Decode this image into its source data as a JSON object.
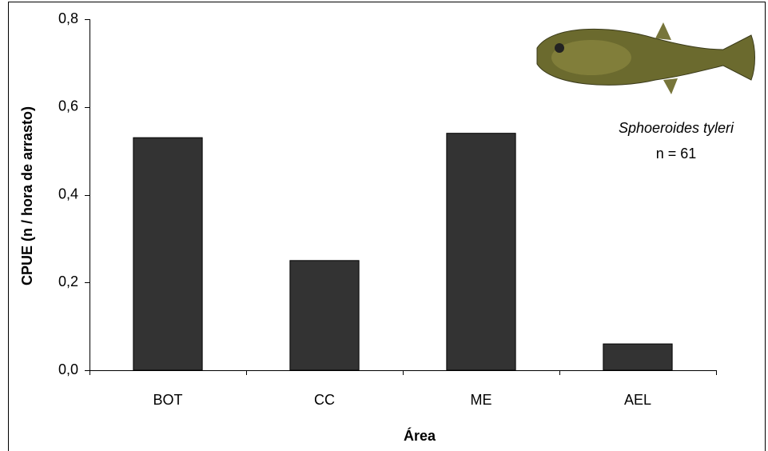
{
  "chart_data": {
    "type": "bar",
    "categories": [
      "BOT",
      "CC",
      "ME",
      "AEL"
    ],
    "values": [
      0.53,
      0.25,
      0.54,
      0.06
    ],
    "color": "#333333",
    "ylim": [
      0,
      0.8
    ],
    "yticks": [
      {
        "value": 0,
        "label": "0,0"
      },
      {
        "value": 0.2,
        "label": "0,2"
      },
      {
        "value": 0.4,
        "label": "0,4"
      },
      {
        "value": 0.6,
        "label": "0,6"
      },
      {
        "value": 0.8,
        "label": "0,8"
      }
    ],
    "x_label": "Área",
    "y_label": "CPUE (n / hora de arrasto)",
    "annotations": [
      "Sphoeroides tyleri",
      "n = 61"
    ]
  }
}
